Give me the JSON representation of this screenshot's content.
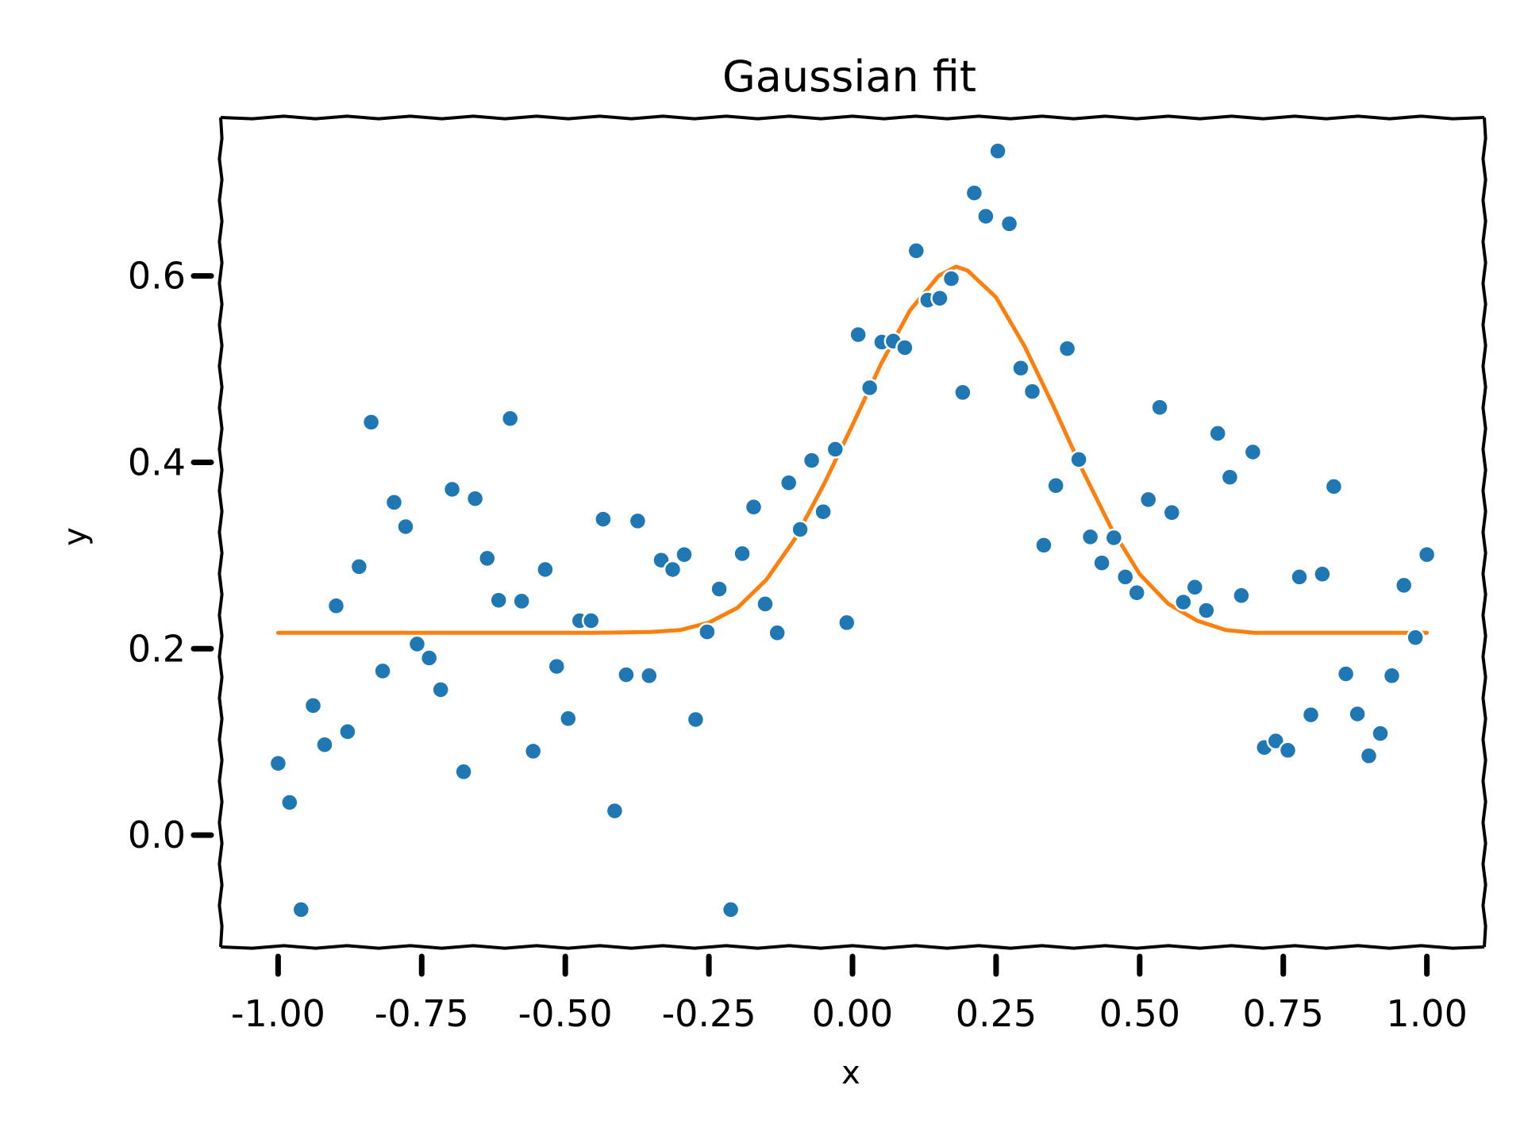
{
  "chart_data": {
    "type": "scatter",
    "title": "Gaussian fit",
    "xlabel": "x",
    "ylabel": "y",
    "xlim": [
      -1.1,
      1.1
    ],
    "ylim": [
      -0.12,
      0.77
    ],
    "x_ticks": [
      -1.0,
      -0.75,
      -0.5,
      -0.25,
      0.0,
      0.25,
      0.5,
      0.75,
      1.0
    ],
    "x_tick_labels": [
      "-1.00",
      "-0.75",
      "-0.50",
      "-0.25",
      "0.00",
      "0.25",
      "0.50",
      "0.75",
      "1.00"
    ],
    "y_ticks": [
      0.0,
      0.2,
      0.4,
      0.6
    ],
    "y_tick_labels": [
      "0.0",
      "0.2",
      "0.4",
      "0.6"
    ],
    "grid": false,
    "legend": "none",
    "colors": {
      "points": "#1f77b4",
      "fit": "#ff7f0e",
      "axes": "#000000"
    },
    "series": [
      {
        "kind": "scatter",
        "points": [
          [
            -1.0,
            0.077
          ],
          [
            -0.98,
            0.035
          ],
          [
            -0.96,
            -0.08
          ],
          [
            -0.939,
            0.139
          ],
          [
            -0.919,
            0.097
          ],
          [
            -0.899,
            0.246
          ],
          [
            -0.879,
            0.111
          ],
          [
            -0.859,
            0.288
          ],
          [
            -0.838,
            0.443
          ],
          [
            -0.818,
            0.176
          ],
          [
            -0.798,
            0.357
          ],
          [
            -0.778,
            0.331
          ],
          [
            -0.758,
            0.205
          ],
          [
            -0.737,
            0.19
          ],
          [
            -0.717,
            0.156
          ],
          [
            -0.697,
            0.371
          ],
          [
            -0.677,
            0.068
          ],
          [
            -0.657,
            0.361
          ],
          [
            -0.636,
            0.297
          ],
          [
            -0.616,
            0.252
          ],
          [
            -0.596,
            0.447
          ],
          [
            -0.576,
            0.251
          ],
          [
            -0.556,
            0.09
          ],
          [
            -0.535,
            0.285
          ],
          [
            -0.515,
            0.181
          ],
          [
            -0.495,
            0.125
          ],
          [
            -0.475,
            0.23
          ],
          [
            -0.455,
            0.23
          ],
          [
            -0.434,
            0.339
          ],
          [
            -0.414,
            0.026
          ],
          [
            -0.394,
            0.172
          ],
          [
            -0.374,
            0.337
          ],
          [
            -0.354,
            0.171
          ],
          [
            -0.333,
            0.295
          ],
          [
            -0.313,
            0.285
          ],
          [
            -0.293,
            0.301
          ],
          [
            -0.273,
            0.124
          ],
          [
            -0.253,
            0.218
          ],
          [
            -0.232,
            0.264
          ],
          [
            -0.212,
            -0.08
          ],
          [
            -0.192,
            0.302
          ],
          [
            -0.172,
            0.352
          ],
          [
            -0.152,
            0.248
          ],
          [
            -0.131,
            0.217
          ],
          [
            -0.111,
            0.378
          ],
          [
            -0.091,
            0.328
          ],
          [
            -0.071,
            0.402
          ],
          [
            -0.051,
            0.347
          ],
          [
            -0.03,
            0.414
          ],
          [
            -0.01,
            0.228
          ],
          [
            0.01,
            0.537
          ],
          [
            0.03,
            0.48
          ],
          [
            0.051,
            0.529
          ],
          [
            0.071,
            0.53
          ],
          [
            0.091,
            0.523
          ],
          [
            0.111,
            0.627
          ],
          [
            0.131,
            0.574
          ],
          [
            0.152,
            0.576
          ],
          [
            0.172,
            0.597
          ],
          [
            0.192,
            0.475
          ],
          [
            0.212,
            0.689
          ],
          [
            0.232,
            0.664
          ],
          [
            0.253,
            0.734
          ],
          [
            0.273,
            0.656
          ],
          [
            0.293,
            0.501
          ],
          [
            0.313,
            0.476
          ],
          [
            0.333,
            0.311
          ],
          [
            0.354,
            0.375
          ],
          [
            0.374,
            0.522
          ],
          [
            0.394,
            0.403
          ],
          [
            0.414,
            0.32
          ],
          [
            0.434,
            0.292
          ],
          [
            0.455,
            0.319
          ],
          [
            0.475,
            0.277
          ],
          [
            0.495,
            0.26
          ],
          [
            0.515,
            0.36
          ],
          [
            0.535,
            0.459
          ],
          [
            0.556,
            0.346
          ],
          [
            0.576,
            0.25
          ],
          [
            0.596,
            0.266
          ],
          [
            0.616,
            0.241
          ],
          [
            0.636,
            0.431
          ],
          [
            0.657,
            0.384
          ],
          [
            0.677,
            0.257
          ],
          [
            0.697,
            0.411
          ],
          [
            0.717,
            0.094
          ],
          [
            0.737,
            0.101
          ],
          [
            0.758,
            0.091
          ],
          [
            0.778,
            0.277
          ],
          [
            0.798,
            0.129
          ],
          [
            0.818,
            0.28
          ],
          [
            0.838,
            0.374
          ],
          [
            0.859,
            0.173
          ],
          [
            0.879,
            0.13
          ],
          [
            0.899,
            0.085
          ],
          [
            0.919,
            0.109
          ],
          [
            0.939,
            0.171
          ],
          [
            0.96,
            0.268
          ],
          [
            0.98,
            0.212
          ],
          [
            1.0,
            0.301
          ]
        ]
      },
      {
        "kind": "line",
        "points": [
          [
            -1.0,
            0.217
          ],
          [
            -0.8,
            0.217
          ],
          [
            -0.6,
            0.217
          ],
          [
            -0.45,
            0.217
          ],
          [
            -0.35,
            0.218
          ],
          [
            -0.3,
            0.22
          ],
          [
            -0.25,
            0.228
          ],
          [
            -0.2,
            0.244
          ],
          [
            -0.15,
            0.274
          ],
          [
            -0.1,
            0.318
          ],
          [
            -0.05,
            0.376
          ],
          [
            0.0,
            0.44
          ],
          [
            0.05,
            0.506
          ],
          [
            0.1,
            0.563
          ],
          [
            0.15,
            0.6
          ],
          [
            0.18,
            0.61
          ],
          [
            0.2,
            0.606
          ],
          [
            0.25,
            0.577
          ],
          [
            0.3,
            0.524
          ],
          [
            0.35,
            0.46
          ],
          [
            0.4,
            0.392
          ],
          [
            0.45,
            0.33
          ],
          [
            0.5,
            0.28
          ],
          [
            0.55,
            0.248
          ],
          [
            0.6,
            0.23
          ],
          [
            0.65,
            0.22
          ],
          [
            0.7,
            0.217
          ],
          [
            0.8,
            0.217
          ],
          [
            1.0,
            0.217
          ]
        ]
      }
    ]
  }
}
